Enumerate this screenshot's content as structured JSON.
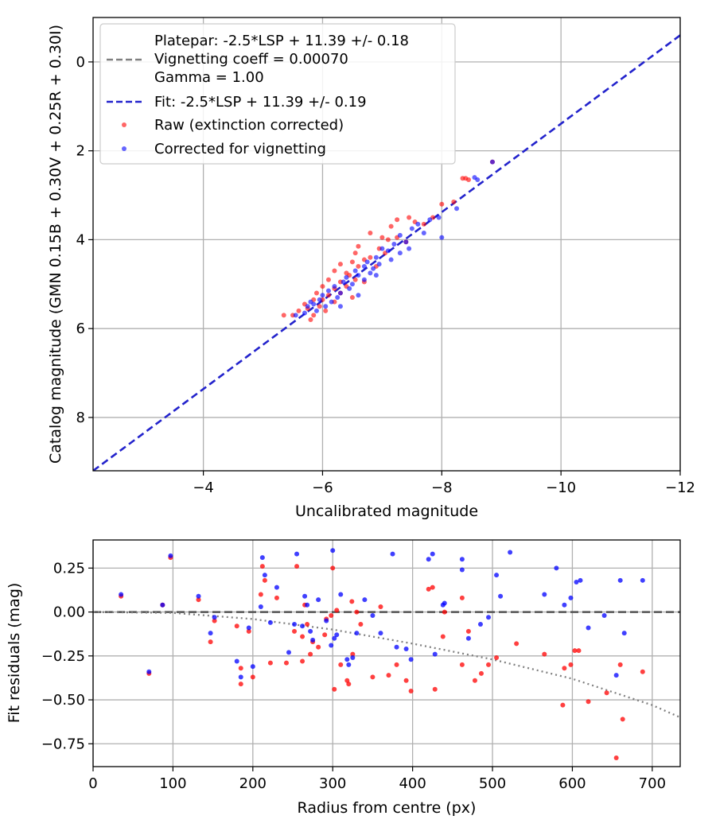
{
  "colors": {
    "raw": "#ff0000",
    "corrected": "#0000ff",
    "fit": "#2323cc",
    "platepar": "#808080",
    "dotted": "#808080",
    "grid": "#b0b0b0"
  },
  "chart_data": [
    {
      "type": "scatter",
      "xlabel": "Uncalibrated magnitude",
      "ylabel": "Catalog magnitude (GMN 0.15B + 0.30V + 0.25R + 0.30I)",
      "xlim": [
        -2.15,
        -12
      ],
      "ylim": [
        9.2,
        -1.0
      ],
      "x_ticks": [
        -4,
        -6,
        -8,
        -10,
        -12
      ],
      "x_tick_labels": [
        "−4",
        "−6",
        "−8",
        "−10",
        "−12"
      ],
      "y_ticks": [
        0,
        2,
        4,
        6,
        8
      ],
      "y_tick_labels": [
        "0",
        "2",
        "4",
        "6",
        "8"
      ],
      "grid": true,
      "legend": {
        "position": "top-left",
        "platepar_lines": [
          "Platepar: -2.5*LSP + 11.39 +/- 0.18",
          "Vignetting coeff = 0.00070",
          "Gamma = 1.00"
        ],
        "fit_label": "Fit: -2.5*LSP + 11.39 +/- 0.19",
        "raw_label": "Raw (extinction corrected)",
        "corrected_label": "Corrected for vignetting"
      },
      "fit_line": {
        "x": [
          -2.15,
          -12
        ],
        "y": [
          9.2,
          -0.6
        ]
      },
      "series": [
        {
          "name": "Raw (extinction corrected)",
          "points": [
            [
              -8.85,
              2.25
            ],
            [
              -8.35,
              2.62
            ],
            [
              -8.4,
              2.62
            ],
            [
              -8.45,
              2.65
            ],
            [
              -8.0,
              3.2
            ],
            [
              -8.2,
              3.15
            ],
            [
              -7.45,
              3.5
            ],
            [
              -7.85,
              3.5
            ],
            [
              -7.55,
              3.6
            ],
            [
              -7.25,
              3.55
            ],
            [
              -7.15,
              3.7
            ],
            [
              -7.7,
              3.65
            ],
            [
              -6.8,
              3.85
            ],
            [
              -7.25,
              3.95
            ],
            [
              -7.0,
              3.95
            ],
            [
              -7.1,
              4.0
            ],
            [
              -7.4,
              4.05
            ],
            [
              -6.6,
              4.15
            ],
            [
              -6.95,
              4.2
            ],
            [
              -7.05,
              4.3
            ],
            [
              -6.55,
              4.3
            ],
            [
              -6.8,
              4.4
            ],
            [
              -6.7,
              4.45
            ],
            [
              -6.5,
              4.5
            ],
            [
              -6.3,
              4.55
            ],
            [
              -6.6,
              4.6
            ],
            [
              -6.9,
              4.6
            ],
            [
              -6.2,
              4.7
            ],
            [
              -6.4,
              4.75
            ],
            [
              -6.45,
              4.8
            ],
            [
              -6.1,
              4.9
            ],
            [
              -6.3,
              4.95
            ],
            [
              -6.55,
              4.9
            ],
            [
              -6.0,
              5.05
            ],
            [
              -6.2,
              5.1
            ],
            [
              -6.4,
              5.05
            ],
            [
              -5.9,
              5.2
            ],
            [
              -6.1,
              5.25
            ],
            [
              -6.3,
              5.2
            ],
            [
              -5.85,
              5.35
            ],
            [
              -6.0,
              5.35
            ],
            [
              -5.7,
              5.45
            ],
            [
              -6.2,
              5.4
            ],
            [
              -5.95,
              5.5
            ],
            [
              -5.75,
              5.55
            ],
            [
              -6.05,
              5.6
            ],
            [
              -5.6,
              5.6
            ],
            [
              -5.85,
              5.7
            ],
            [
              -5.35,
              5.7
            ],
            [
              -5.8,
              5.8
            ],
            [
              -6.5,
              5.3
            ],
            [
              -6.7,
              4.95
            ],
            [
              -5.5,
              5.7
            ]
          ]
        },
        {
          "name": "Corrected for vignetting",
          "points": [
            [
              -8.85,
              2.25
            ],
            [
              -8.6,
              2.65
            ],
            [
              -8.55,
              2.6
            ],
            [
              -8.25,
              3.3
            ],
            [
              -7.95,
              3.5
            ],
            [
              -7.8,
              3.55
            ],
            [
              -7.6,
              3.65
            ],
            [
              -8.0,
              3.95
            ],
            [
              -7.7,
              3.85
            ],
            [
              -7.5,
              3.75
            ],
            [
              -7.3,
              3.9
            ],
            [
              -7.4,
              4.05
            ],
            [
              -7.2,
              4.1
            ],
            [
              -7.45,
              4.2
            ],
            [
              -7.1,
              4.25
            ],
            [
              -7.0,
              4.2
            ],
            [
              -7.3,
              4.3
            ],
            [
              -6.9,
              4.4
            ],
            [
              -7.15,
              4.45
            ],
            [
              -6.75,
              4.5
            ],
            [
              -6.95,
              4.55
            ],
            [
              -6.85,
              4.65
            ],
            [
              -6.7,
              4.6
            ],
            [
              -6.55,
              4.7
            ],
            [
              -6.8,
              4.75
            ],
            [
              -6.6,
              4.8
            ],
            [
              -6.4,
              4.85
            ],
            [
              -6.7,
              4.9
            ],
            [
              -6.35,
              4.95
            ],
            [
              -6.5,
              5.0
            ],
            [
              -6.2,
              5.05
            ],
            [
              -6.45,
              5.1
            ],
            [
              -6.1,
              5.15
            ],
            [
              -6.3,
              5.2
            ],
            [
              -6.0,
              5.25
            ],
            [
              -6.25,
              5.3
            ],
            [
              -5.95,
              5.35
            ],
            [
              -6.15,
              5.4
            ],
            [
              -5.85,
              5.45
            ],
            [
              -6.05,
              5.5
            ],
            [
              -5.75,
              5.5
            ],
            [
              -5.9,
              5.6
            ],
            [
              -5.7,
              5.65
            ],
            [
              -6.3,
              5.5
            ],
            [
              -6.6,
              5.25
            ],
            [
              -6.9,
              4.8
            ],
            [
              -5.55,
              5.7
            ],
            [
              -5.8,
              5.4
            ]
          ]
        }
      ]
    },
    {
      "type": "scatter",
      "xlabel": "Radius from centre (px)",
      "ylabel": "Fit residuals (mag)",
      "xlim": [
        0,
        735
      ],
      "ylim": [
        -0.88,
        0.41
      ],
      "x_ticks": [
        0,
        100,
        200,
        300,
        400,
        500,
        600,
        700
      ],
      "x_tick_labels": [
        "0",
        "100",
        "200",
        "300",
        "400",
        "500",
        "600",
        "700"
      ],
      "y_ticks": [
        0.25,
        0.0,
        -0.25,
        -0.5,
        -0.75
      ],
      "y_tick_labels": [
        "0.25",
        "0.00",
        "−0.25",
        "−0.50",
        "−0.75"
      ],
      "grid": true,
      "zero_line": 0.0,
      "vignetting_curve": {
        "x": [
          0,
          100,
          200,
          300,
          400,
          500,
          600,
          700,
          735
        ],
        "y": [
          0.0,
          -0.005,
          -0.04,
          -0.1,
          -0.18,
          -0.27,
          -0.38,
          -0.53,
          -0.6
        ]
      },
      "series": [
        {
          "name": "Raw (extinction corrected)",
          "points": [
            [
              35,
              0.09
            ],
            [
              70,
              -0.35
            ],
            [
              87,
              0.04
            ],
            [
              97,
              0.31
            ],
            [
              132,
              0.07
            ],
            [
              147,
              -0.17
            ],
            [
              152,
              -0.05
            ],
            [
              180,
              -0.08
            ],
            [
              185,
              -0.32
            ],
            [
              185,
              -0.41
            ],
            [
              195,
              -0.11
            ],
            [
              200,
              -0.37
            ],
            [
              210,
              0.1
            ],
            [
              212,
              0.26
            ],
            [
              215,
              0.18
            ],
            [
              222,
              -0.29
            ],
            [
              230,
              0.08
            ],
            [
              242,
              -0.29
            ],
            [
              252,
              -0.11
            ],
            [
              255,
              0.26
            ],
            [
              262,
              -0.28
            ],
            [
              262,
              -0.14
            ],
            [
              265,
              0.04
            ],
            [
              268,
              -0.07
            ],
            [
              272,
              -0.24
            ],
            [
              275,
              -0.17
            ],
            [
              282,
              -0.2
            ],
            [
              290,
              -0.13
            ],
            [
              292,
              -0.04
            ],
            [
              298,
              -0.02
            ],
            [
              300,
              0.25
            ],
            [
              302,
              -0.44
            ],
            [
              305,
              0.01
            ],
            [
              310,
              -0.3
            ],
            [
              318,
              -0.39
            ],
            [
              320,
              -0.41
            ],
            [
              324,
              0.06
            ],
            [
              325,
              -0.24
            ],
            [
              330,
              0.0
            ],
            [
              335,
              -0.07
            ],
            [
              350,
              -0.37
            ],
            [
              360,
              0.03
            ],
            [
              370,
              -0.36
            ],
            [
              380,
              -0.3
            ],
            [
              392,
              -0.39
            ],
            [
              398,
              -0.45
            ],
            [
              420,
              0.13
            ],
            [
              425,
              0.14
            ],
            [
              428,
              -0.44
            ],
            [
              438,
              -0.14
            ],
            [
              440,
              0.0
            ],
            [
              462,
              0.08
            ],
            [
              462,
              -0.3
            ],
            [
              470,
              -0.11
            ],
            [
              478,
              -0.39
            ],
            [
              486,
              -0.35
            ],
            [
              495,
              -0.3
            ],
            [
              505,
              -0.26
            ],
            [
              530,
              -0.18
            ],
            [
              565,
              -0.24
            ],
            [
              588,
              -0.53
            ],
            [
              590,
              -0.32
            ],
            [
              598,
              -0.3
            ],
            [
              603,
              -0.22
            ],
            [
              608,
              -0.22
            ],
            [
              620,
              -0.51
            ],
            [
              643,
              -0.46
            ],
            [
              655,
              -0.83
            ],
            [
              660,
              -0.3
            ],
            [
              663,
              -0.61
            ],
            [
              688,
              -0.34
            ]
          ]
        },
        {
          "name": "Corrected for vignetting",
          "points": [
            [
              35,
              0.1
            ],
            [
              70,
              -0.34
            ],
            [
              87,
              0.04
            ],
            [
              97,
              0.32
            ],
            [
              132,
              0.09
            ],
            [
              147,
              -0.12
            ],
            [
              152,
              -0.03
            ],
            [
              180,
              -0.28
            ],
            [
              185,
              -0.37
            ],
            [
              195,
              -0.09
            ],
            [
              200,
              -0.31
            ],
            [
              210,
              0.03
            ],
            [
              212,
              0.31
            ],
            [
              215,
              0.21
            ],
            [
              222,
              -0.06
            ],
            [
              230,
              0.14
            ],
            [
              245,
              -0.23
            ],
            [
              252,
              -0.07
            ],
            [
              255,
              0.33
            ],
            [
              262,
              -0.08
            ],
            [
              265,
              0.09
            ],
            [
              268,
              0.04
            ],
            [
              272,
              -0.11
            ],
            [
              275,
              -0.16
            ],
            [
              282,
              0.07
            ],
            [
              292,
              -0.05
            ],
            [
              298,
              -0.19
            ],
            [
              300,
              0.35
            ],
            [
              302,
              -0.15
            ],
            [
              305,
              -0.13
            ],
            [
              310,
              0.1
            ],
            [
              318,
              -0.27
            ],
            [
              320,
              -0.3
            ],
            [
              325,
              -0.26
            ],
            [
              330,
              -0.12
            ],
            [
              340,
              0.07
            ],
            [
              350,
              -0.02
            ],
            [
              360,
              -0.12
            ],
            [
              375,
              0.33
            ],
            [
              380,
              -0.2
            ],
            [
              392,
              -0.21
            ],
            [
              398,
              -0.27
            ],
            [
              420,
              0.3
            ],
            [
              425,
              0.33
            ],
            [
              428,
              -0.24
            ],
            [
              438,
              0.04
            ],
            [
              440,
              0.05
            ],
            [
              462,
              0.3
            ],
            [
              462,
              0.24
            ],
            [
              470,
              -0.15
            ],
            [
              485,
              -0.07
            ],
            [
              495,
              -0.03
            ],
            [
              505,
              0.21
            ],
            [
              510,
              0.09
            ],
            [
              522,
              0.34
            ],
            [
              565,
              0.1
            ],
            [
              580,
              0.25
            ],
            [
              590,
              0.04
            ],
            [
              598,
              0.08
            ],
            [
              605,
              0.17
            ],
            [
              610,
              0.18
            ],
            [
              620,
              -0.09
            ],
            [
              640,
              -0.02
            ],
            [
              655,
              -0.36
            ],
            [
              660,
              0.18
            ],
            [
              665,
              -0.12
            ],
            [
              688,
              0.18
            ]
          ]
        }
      ]
    }
  ]
}
